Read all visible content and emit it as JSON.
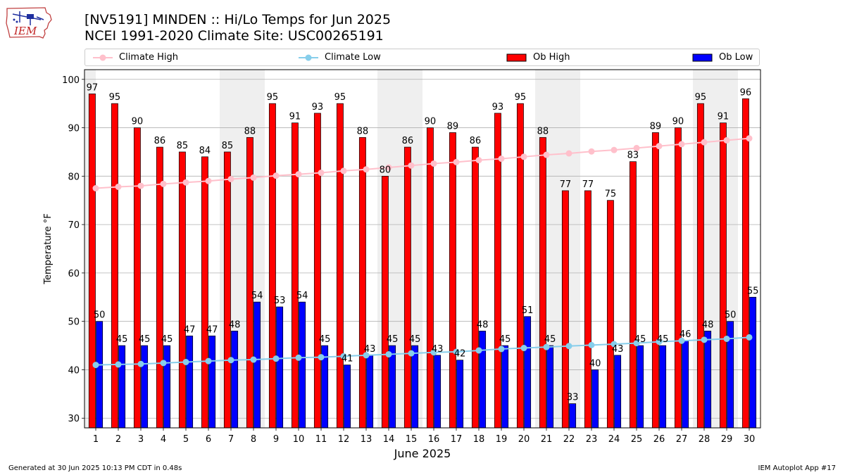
{
  "header": {
    "logo_text": "IEM",
    "title_line1": "[NV5191] MINDEN :: Hi/Lo Temps for Jun 2025",
    "title_line2": "NCEI 1991-2020 Climate Site: USC00265191"
  },
  "legend": {
    "items": [
      {
        "label": "Climate High",
        "color": "#ffc0cb",
        "kind": "line-marker"
      },
      {
        "label": "Climate Low",
        "color": "#87ceeb",
        "kind": "line-marker"
      },
      {
        "label": "Ob High",
        "color": "#ff0000",
        "kind": "box"
      },
      {
        "label": "Ob Low",
        "color": "#0000ff",
        "kind": "box"
      }
    ],
    "placement": "top"
  },
  "footer": {
    "left": "Generated at 30 Jun 2025 10:13 PM CDT in 0.48s",
    "right": "IEM Autoplot App #17"
  },
  "chart_data": {
    "type": "bar",
    "xlabel": "June 2025",
    "ylabel": "Temperature °F",
    "ylim": [
      28,
      102
    ],
    "yticks": [
      30,
      40,
      50,
      60,
      70,
      80,
      90,
      100
    ],
    "grid": true,
    "categories": [
      "1",
      "2",
      "3",
      "4",
      "5",
      "6",
      "7",
      "8",
      "9",
      "10",
      "11",
      "12",
      "13",
      "14",
      "15",
      "16",
      "17",
      "18",
      "19",
      "20",
      "21",
      "22",
      "23",
      "24",
      "25",
      "26",
      "27",
      "28",
      "29",
      "30"
    ],
    "weekend_shading": [
      [
        "31",
        "1"
      ],
      [
        "7",
        "8"
      ],
      [
        "14",
        "15"
      ],
      [
        "21",
        "22"
      ],
      [
        "28",
        "29"
      ]
    ],
    "series": [
      {
        "name": "Ob High",
        "kind": "bar",
        "color": "#ff0000",
        "values": [
          97,
          95,
          90,
          86,
          85,
          84,
          85,
          88,
          95,
          91,
          93,
          95,
          88,
          80,
          86,
          90,
          89,
          86,
          93,
          95,
          88,
          77,
          77,
          75,
          83,
          89,
          90,
          95,
          91,
          96
        ]
      },
      {
        "name": "Ob Low",
        "kind": "bar",
        "color": "#0000ff",
        "values": [
          50,
          45,
          45,
          45,
          47,
          47,
          48,
          54,
          53,
          54,
          45,
          41,
          43,
          45,
          45,
          43,
          42,
          48,
          45,
          51,
          45,
          33,
          40,
          43,
          45,
          45,
          46,
          48,
          50,
          55
        ]
      },
      {
        "name": "Climate High",
        "kind": "line",
        "color": "#ffc0cb",
        "values": [
          77.5,
          77.8,
          78.0,
          78.4,
          78.7,
          79.0,
          79.4,
          79.7,
          80.1,
          80.4,
          80.7,
          81.1,
          81.4,
          81.8,
          82.2,
          82.6,
          82.9,
          83.3,
          83.6,
          84.0,
          84.4,
          84.7,
          85.1,
          85.4,
          85.8,
          86.2,
          86.6,
          87.0,
          87.4,
          87.8
        ]
      },
      {
        "name": "Climate Low",
        "kind": "line",
        "color": "#87ceeb",
        "values": [
          41.0,
          41.1,
          41.2,
          41.4,
          41.6,
          41.8,
          42.0,
          42.1,
          42.3,
          42.5,
          42.6,
          42.8,
          43.0,
          43.2,
          43.4,
          43.6,
          43.7,
          44.0,
          44.3,
          44.5,
          44.7,
          44.9,
          45.1,
          45.3,
          45.5,
          45.8,
          46.0,
          46.2,
          46.4,
          46.7
        ]
      }
    ]
  }
}
